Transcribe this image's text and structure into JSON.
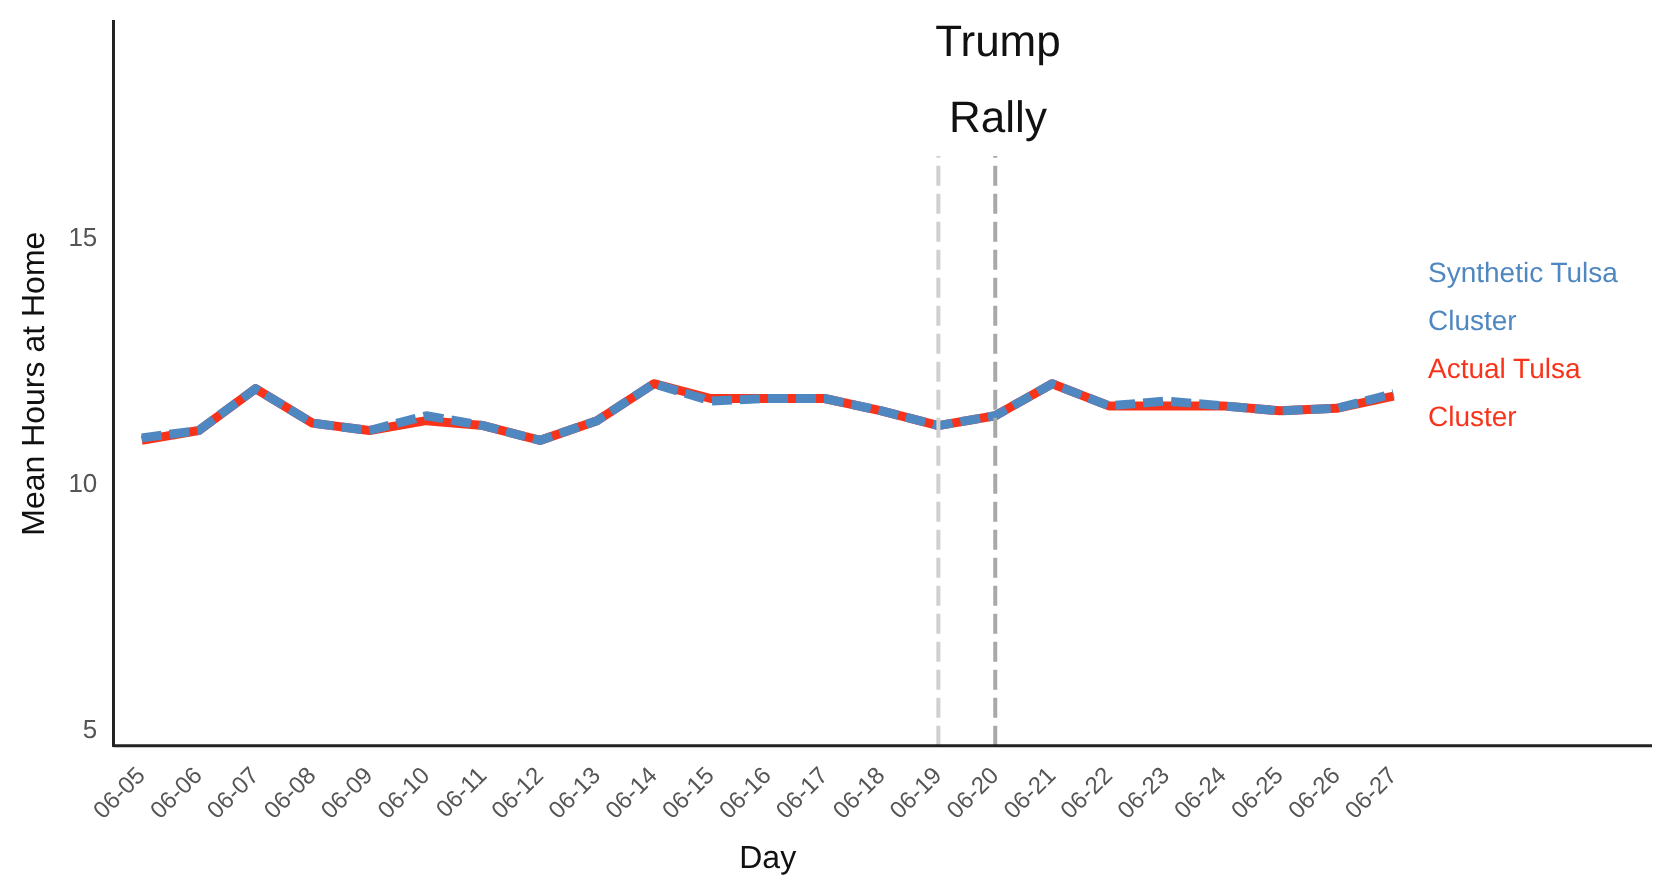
{
  "chart_data": {
    "type": "line",
    "xlabel": "Day",
    "ylabel": "Mean Hours at Home",
    "categories": [
      "06-05",
      "06-06",
      "06-07",
      "06-08",
      "06-09",
      "06-10",
      "06-11",
      "06-12",
      "06-13",
      "06-14",
      "06-15",
      "06-16",
      "06-17",
      "06-18",
      "06-19",
      "06-20",
      "06-21",
      "06-22",
      "06-23",
      "06-24",
      "06-25",
      "06-26",
      "06-27"
    ],
    "series": [
      {
        "name": "Actual Tulsa Cluster",
        "color": "#f8331a",
        "line_style": "solid",
        "values": [
          10.9,
          11.1,
          11.95,
          11.25,
          11.1,
          11.3,
          11.2,
          10.9,
          11.3,
          12.05,
          11.75,
          11.75,
          11.75,
          11.5,
          11.2,
          11.4,
          12.05,
          11.6,
          11.6,
          11.6,
          11.5,
          11.55,
          11.8
        ]
      },
      {
        "name": "Synthetic Tulsa Cluster",
        "color": "#4f87c0",
        "line_style": "dashed",
        "values": [
          10.95,
          11.1,
          11.95,
          11.25,
          11.1,
          11.4,
          11.2,
          10.9,
          11.3,
          12.05,
          11.7,
          11.75,
          11.75,
          11.5,
          11.2,
          11.4,
          12.05,
          11.6,
          11.7,
          11.6,
          11.5,
          11.55,
          11.85
        ]
      }
    ],
    "ylim": [
      4.7,
      19.4
    ],
    "yticks": [
      5,
      10,
      15
    ],
    "grid": false,
    "legend": "right",
    "ref_lines": [
      {
        "axis": "x",
        "value": "06-19",
        "color": "#d0d0d0",
        "line_style": "dashed"
      },
      {
        "axis": "x",
        "value": "06-20",
        "color": "#a8a8a8",
        "line_style": "dashed"
      }
    ],
    "annotations": [
      "Trump Rally"
    ]
  }
}
